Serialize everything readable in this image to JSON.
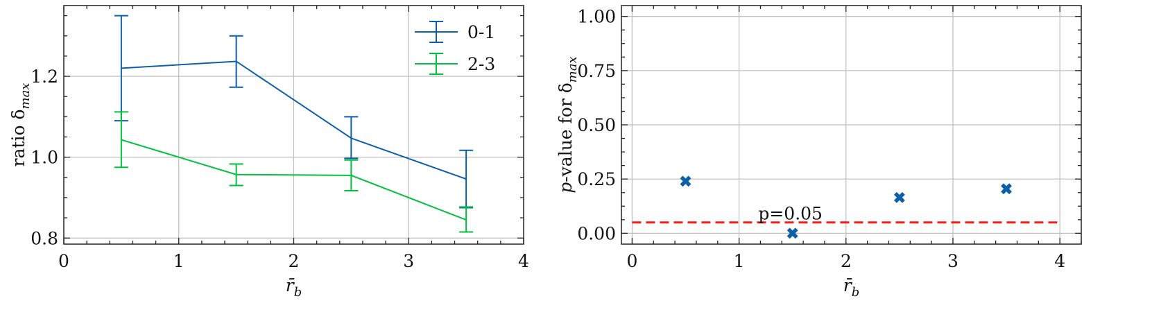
{
  "chart_data": [
    {
      "type": "line",
      "x": [
        0.5,
        1.5,
        2.5,
        3.5
      ],
      "series": [
        {
          "name": "0-1",
          "color": "#0d5fa8",
          "values": [
            1.22,
            1.237,
            1.047,
            0.946
          ],
          "err_low": [
            1.09,
            1.173,
            0.997,
            0.875
          ],
          "err_high": [
            1.35,
            1.3,
            1.1,
            1.017
          ]
        },
        {
          "name": "2-3",
          "color": "#00c040",
          "values": [
            1.043,
            0.957,
            0.955,
            0.845
          ],
          "err_low": [
            0.975,
            0.93,
            0.917,
            0.815
          ],
          "err_high": [
            1.112,
            0.983,
            0.993,
            0.877
          ]
        }
      ],
      "xlabel": "r̄",
      "xlabel_sub": "b",
      "ylabel": "ratio δ",
      "ylabel_sub": "max",
      "xlim": [
        0,
        4
      ],
      "ylim": [
        0.785,
        1.375
      ],
      "xticks": [
        0,
        1,
        2,
        3,
        4
      ],
      "yticks": [
        0.8,
        1.0,
        1.2
      ],
      "ytick_labels": [
        "0.8",
        "1.0",
        "1.2"
      ],
      "grid": true,
      "legend": "upper right"
    },
    {
      "type": "scatter",
      "x": [
        0.5,
        1.5,
        2.5,
        3.5
      ],
      "series": [
        {
          "color": "#0d5fa8",
          "marker": "x",
          "values": [
            0.24,
            0.0,
            0.165,
            0.205
          ]
        }
      ],
      "hline": {
        "y": 0.05,
        "color": "#ff1a1a",
        "style": "dashed",
        "label": "p=0.05",
        "label_x": 1.18
      },
      "xlabel": "r̄",
      "xlabel_sub": "b",
      "ylabel_prefix": "p",
      "ylabel": "-value for δ",
      "ylabel_sub": "max",
      "xlim": [
        -0.1,
        4.2
      ],
      "ylim": [
        -0.05,
        1.05
      ],
      "xticks": [
        0,
        1,
        2,
        3,
        4
      ],
      "yticks": [
        0.0,
        0.25,
        0.5,
        0.75,
        1.0
      ],
      "ytick_labels": [
        "0.00",
        "0.25",
        "0.50",
        "0.75",
        "1.00"
      ],
      "grid": true
    }
  ]
}
